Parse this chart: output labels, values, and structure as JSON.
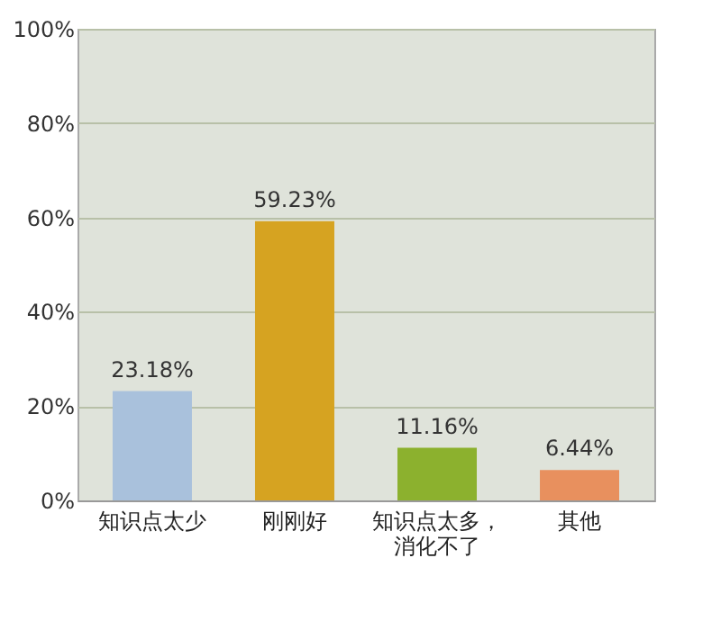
{
  "chart_data": {
    "type": "bar",
    "categories": [
      "知识点太少",
      "刚刚好",
      "知识点太多，消化不了",
      "其他"
    ],
    "values": [
      23.18,
      59.23,
      11.16,
      6.44
    ],
    "colors": [
      "#a9c1dc",
      "#d6a321",
      "#8cb12e",
      "#e8905e"
    ],
    "value_labels": [
      "23.18%",
      "59.23%",
      "11.16%",
      "6.44%"
    ],
    "ylim": [
      0,
      100
    ],
    "yticks": [
      {
        "value": 0,
        "label": "0%"
      },
      {
        "value": 20,
        "label": "20%"
      },
      {
        "value": 40,
        "label": "40%"
      },
      {
        "value": 60,
        "label": "60%"
      },
      {
        "value": 80,
        "label": "80%"
      },
      {
        "value": 100,
        "label": "100%"
      }
    ],
    "grid": "y"
  }
}
